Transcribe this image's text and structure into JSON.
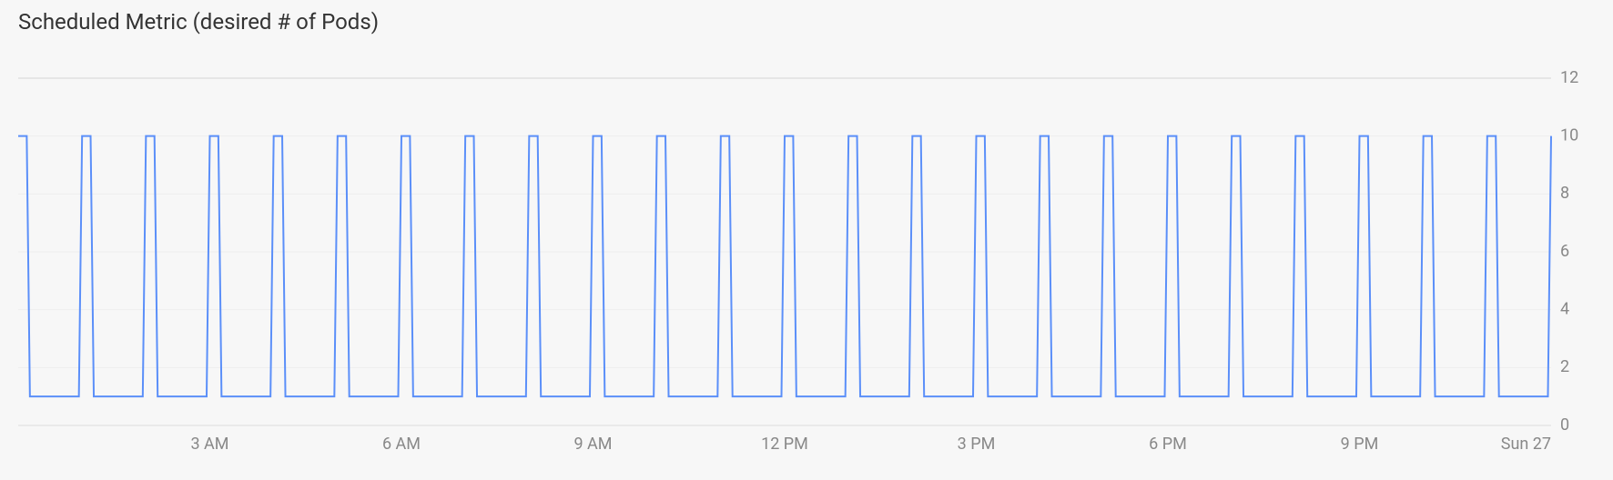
{
  "chart": {
    "type": "line",
    "title": "Scheduled Metric (desired # of Pods)",
    "background_color": "#f7f7f7",
    "grid_color": "#eeeeee",
    "top_rule_color": "#e6e6e6",
    "x_baseline_color": "#dddddd",
    "axis_label_color": "#888888",
    "axis_label_fontsize": 18,
    "title_fontsize": 24,
    "title_color": "#333333",
    "series_color": "#5b8ff9",
    "line_width": 2,
    "x_range_minutes": [
      0,
      1440
    ],
    "y_range": [
      0,
      12
    ],
    "y_ticks": [
      0,
      2,
      4,
      6,
      8,
      10,
      12
    ],
    "x_ticks": [
      {
        "minute": 180,
        "label": "3 AM"
      },
      {
        "minute": 360,
        "label": "6 AM"
      },
      {
        "minute": 540,
        "label": "9 AM"
      },
      {
        "minute": 720,
        "label": "12 PM"
      },
      {
        "minute": 900,
        "label": "3 PM"
      },
      {
        "minute": 1080,
        "label": "6 PM"
      },
      {
        "minute": 1260,
        "label": "9 PM"
      },
      {
        "minute": 1440,
        "label": "Sun 27"
      }
    ],
    "pattern": {
      "period_minutes": 60,
      "high_value": 10,
      "low_value": 1,
      "high_start_offset": 0,
      "high_duration_minutes": 8,
      "rise_minutes": 3,
      "fall_minutes": 3,
      "cycles": 24,
      "ends_high": true
    }
  }
}
